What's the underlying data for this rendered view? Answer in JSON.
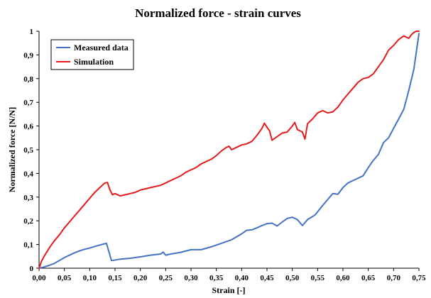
{
  "chart_data": {
    "type": "line",
    "title": "Normalized force - strain curves",
    "xlabel": "Strain [-]",
    "ylabel": "Normalized force [N/N]",
    "xlim": [
      0,
      0.75
    ],
    "ylim": [
      0,
      1
    ],
    "x_ticks": [
      "0,00",
      "0,05",
      "0,10",
      "0,15",
      "0,20",
      "0,25",
      "0,30",
      "0,35",
      "0,40",
      "0,45",
      "0,50",
      "0,55",
      "0,60",
      "0,65",
      "0,70",
      "0,75"
    ],
    "y_ticks": [
      "0",
      "0,1",
      "0,2",
      "0,3",
      "0,4",
      "0,5",
      "0,6",
      "0,7",
      "0,8",
      "0,9",
      "1"
    ],
    "legend_position": "top-left",
    "grid": false,
    "series": [
      {
        "name": "Measured data",
        "color": "#4472C4",
        "points": [
          [
            0.0,
            0.0
          ],
          [
            0.01,
            0.005
          ],
          [
            0.02,
            0.012
          ],
          [
            0.03,
            0.02
          ],
          [
            0.04,
            0.032
          ],
          [
            0.05,
            0.045
          ],
          [
            0.06,
            0.055
          ],
          [
            0.07,
            0.065
          ],
          [
            0.08,
            0.073
          ],
          [
            0.09,
            0.08
          ],
          [
            0.1,
            0.085
          ],
          [
            0.11,
            0.092
          ],
          [
            0.12,
            0.098
          ],
          [
            0.133,
            0.105
          ],
          [
            0.143,
            0.032
          ],
          [
            0.16,
            0.038
          ],
          [
            0.18,
            0.042
          ],
          [
            0.2,
            0.048
          ],
          [
            0.22,
            0.055
          ],
          [
            0.24,
            0.06
          ],
          [
            0.245,
            0.068
          ],
          [
            0.25,
            0.055
          ],
          [
            0.26,
            0.06
          ],
          [
            0.28,
            0.067
          ],
          [
            0.3,
            0.078
          ],
          [
            0.32,
            0.078
          ],
          [
            0.34,
            0.09
          ],
          [
            0.36,
            0.105
          ],
          [
            0.38,
            0.12
          ],
          [
            0.4,
            0.145
          ],
          [
            0.41,
            0.16
          ],
          [
            0.42,
            0.162
          ],
          [
            0.43,
            0.17
          ],
          [
            0.44,
            0.18
          ],
          [
            0.45,
            0.188
          ],
          [
            0.46,
            0.19
          ],
          [
            0.47,
            0.178
          ],
          [
            0.48,
            0.195
          ],
          [
            0.49,
            0.21
          ],
          [
            0.5,
            0.215
          ],
          [
            0.51,
            0.205
          ],
          [
            0.52,
            0.18
          ],
          [
            0.53,
            0.205
          ],
          [
            0.545,
            0.225
          ],
          [
            0.56,
            0.265
          ],
          [
            0.57,
            0.29
          ],
          [
            0.58,
            0.315
          ],
          [
            0.59,
            0.312
          ],
          [
            0.6,
            0.34
          ],
          [
            0.61,
            0.36
          ],
          [
            0.62,
            0.37
          ],
          [
            0.63,
            0.38
          ],
          [
            0.64,
            0.39
          ],
          [
            0.65,
            0.425
          ],
          [
            0.66,
            0.455
          ],
          [
            0.67,
            0.48
          ],
          [
            0.68,
            0.53
          ],
          [
            0.69,
            0.55
          ],
          [
            0.7,
            0.59
          ],
          [
            0.71,
            0.63
          ],
          [
            0.72,
            0.67
          ],
          [
            0.73,
            0.75
          ],
          [
            0.74,
            0.84
          ],
          [
            0.75,
            0.99
          ]
        ]
      },
      {
        "name": "Simulation",
        "color": "#E31B1B",
        "points": [
          [
            0.0,
            0.0
          ],
          [
            0.005,
            0.03
          ],
          [
            0.01,
            0.05
          ],
          [
            0.02,
            0.085
          ],
          [
            0.03,
            0.115
          ],
          [
            0.04,
            0.14
          ],
          [
            0.05,
            0.17
          ],
          [
            0.06,
            0.195
          ],
          [
            0.07,
            0.22
          ],
          [
            0.08,
            0.245
          ],
          [
            0.09,
            0.27
          ],
          [
            0.1,
            0.295
          ],
          [
            0.11,
            0.32
          ],
          [
            0.12,
            0.34
          ],
          [
            0.13,
            0.36
          ],
          [
            0.135,
            0.362
          ],
          [
            0.14,
            0.33
          ],
          [
            0.145,
            0.31
          ],
          [
            0.15,
            0.315
          ],
          [
            0.16,
            0.305
          ],
          [
            0.17,
            0.31
          ],
          [
            0.18,
            0.315
          ],
          [
            0.19,
            0.32
          ],
          [
            0.2,
            0.33
          ],
          [
            0.21,
            0.335
          ],
          [
            0.22,
            0.34
          ],
          [
            0.23,
            0.345
          ],
          [
            0.24,
            0.35
          ],
          [
            0.25,
            0.36
          ],
          [
            0.26,
            0.37
          ],
          [
            0.27,
            0.38
          ],
          [
            0.28,
            0.39
          ],
          [
            0.29,
            0.405
          ],
          [
            0.3,
            0.415
          ],
          [
            0.31,
            0.425
          ],
          [
            0.32,
            0.44
          ],
          [
            0.33,
            0.45
          ],
          [
            0.34,
            0.46
          ],
          [
            0.35,
            0.475
          ],
          [
            0.36,
            0.495
          ],
          [
            0.37,
            0.51
          ],
          [
            0.375,
            0.515
          ],
          [
            0.38,
            0.5
          ],
          [
            0.39,
            0.51
          ],
          [
            0.4,
            0.52
          ],
          [
            0.41,
            0.525
          ],
          [
            0.42,
            0.535
          ],
          [
            0.43,
            0.56
          ],
          [
            0.44,
            0.59
          ],
          [
            0.445,
            0.612
          ],
          [
            0.45,
            0.595
          ],
          [
            0.455,
            0.58
          ],
          [
            0.46,
            0.54
          ],
          [
            0.47,
            0.555
          ],
          [
            0.48,
            0.57
          ],
          [
            0.49,
            0.575
          ],
          [
            0.5,
            0.6
          ],
          [
            0.505,
            0.615
          ],
          [
            0.51,
            0.585
          ],
          [
            0.52,
            0.575
          ],
          [
            0.525,
            0.545
          ],
          [
            0.53,
            0.61
          ],
          [
            0.54,
            0.63
          ],
          [
            0.55,
            0.655
          ],
          [
            0.56,
            0.665
          ],
          [
            0.57,
            0.655
          ],
          [
            0.58,
            0.66
          ],
          [
            0.59,
            0.68
          ],
          [
            0.6,
            0.71
          ],
          [
            0.61,
            0.735
          ],
          [
            0.62,
            0.76
          ],
          [
            0.63,
            0.785
          ],
          [
            0.64,
            0.8
          ],
          [
            0.65,
            0.805
          ],
          [
            0.66,
            0.82
          ],
          [
            0.67,
            0.85
          ],
          [
            0.68,
            0.88
          ],
          [
            0.69,
            0.92
          ],
          [
            0.7,
            0.94
          ],
          [
            0.71,
            0.965
          ],
          [
            0.72,
            0.98
          ],
          [
            0.73,
            0.97
          ],
          [
            0.735,
            0.985
          ],
          [
            0.74,
            0.995
          ],
          [
            0.745,
            1.0
          ],
          [
            0.75,
            1.0
          ]
        ]
      }
    ]
  }
}
